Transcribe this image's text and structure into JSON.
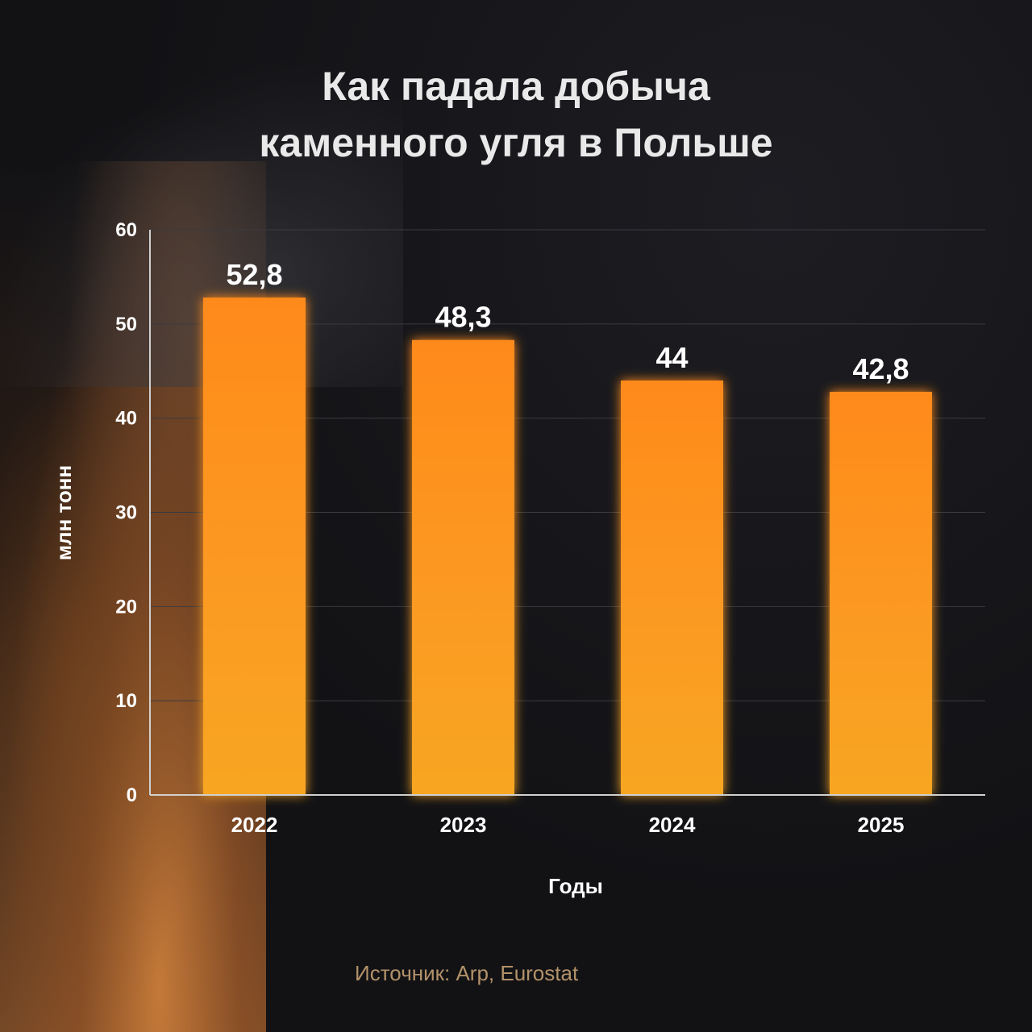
{
  "chart_data": {
    "type": "bar",
    "title": "Как падала добыча каменного угля в Польше",
    "title_lines": [
      "Как падала добыча",
      "каменного угля в Польше"
    ],
    "categories": [
      "2022",
      "2023",
      "2024",
      "2025"
    ],
    "values": [
      52.8,
      48.3,
      44,
      42.8
    ],
    "value_labels": [
      "52,8",
      "48,3",
      "44",
      "42,8"
    ],
    "xlabel": "Годы",
    "ylabel": "млн тонн",
    "ylim": [
      0,
      60
    ],
    "yticks": [
      0,
      10,
      20,
      30,
      40,
      50,
      60
    ],
    "grid": true,
    "bar_color_top": "#ff8a1e",
    "bar_color_bottom": "#f8a622"
  },
  "source": "Источник: Arp, Eurostat"
}
